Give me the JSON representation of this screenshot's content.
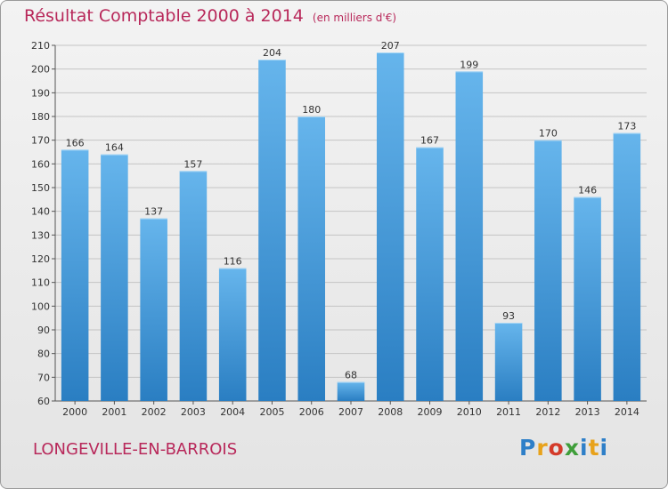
{
  "header": {
    "title": "Résultat Comptable 2000 à 2014",
    "unit": "(en milliers d'€)"
  },
  "footer": {
    "commune": "LONGEVILLE-EN-BARROIS",
    "logo": "Proxiti"
  },
  "colors": {
    "accent": "#b8285a",
    "bar_light": "#66b5ec",
    "bar_dark": "#2a7ec2"
  },
  "chart_data": {
    "type": "bar",
    "title": "Résultat Comptable 2000 à 2014",
    "subtitle": "(en milliers d'€)",
    "xlabel": "",
    "ylabel": "",
    "ylim": [
      60,
      210
    ],
    "yticks": [
      60,
      70,
      80,
      90,
      100,
      110,
      120,
      130,
      140,
      150,
      160,
      170,
      180,
      190,
      200,
      210
    ],
    "grid": true,
    "categories": [
      "2000",
      "2001",
      "2002",
      "2003",
      "2004",
      "2005",
      "2006",
      "2007",
      "2008",
      "2009",
      "2010",
      "2011",
      "2012",
      "2013",
      "2014"
    ],
    "values": [
      166,
      164,
      137,
      157,
      116,
      204,
      180,
      68,
      207,
      167,
      199,
      93,
      170,
      146,
      173
    ]
  }
}
